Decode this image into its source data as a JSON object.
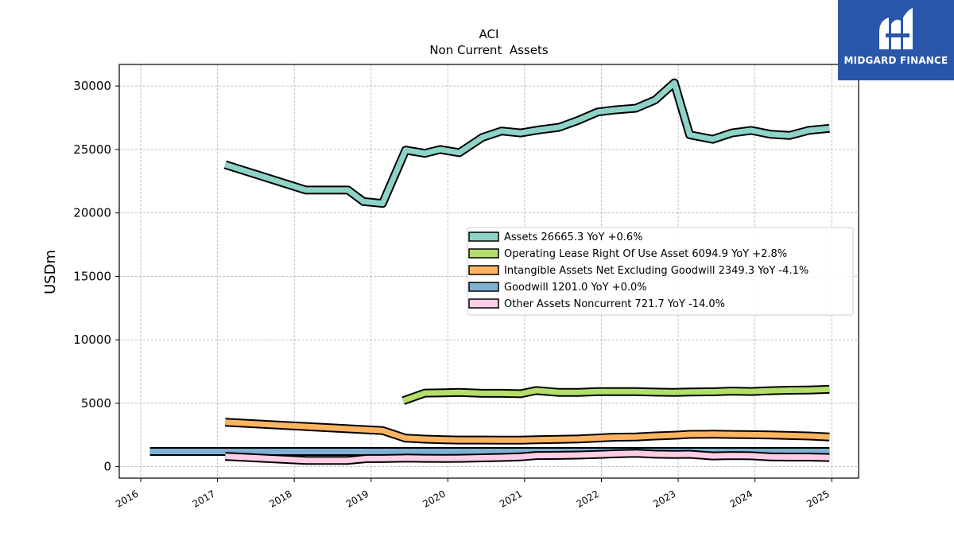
{
  "chart_data": {
    "type": "area",
    "title": "ACI",
    "subtitle": "Non Current  Assets",
    "ylabel": "USDm",
    "xlabel": "",
    "ylim": [
      -900,
      31700
    ],
    "xlim": [
      2015.72,
      2025.35
    ],
    "yticks": [
      0,
      5000,
      10000,
      15000,
      20000,
      25000,
      30000
    ],
    "xticks": [
      "2016",
      "2017",
      "2018",
      "2019",
      "2020",
      "2021",
      "2022",
      "2023",
      "2024",
      "2025"
    ],
    "grid": true,
    "legend_position": "center-right",
    "series": [
      {
        "name": "Assets",
        "legend": "Assets  26665.3 YoY +0.6%",
        "color": "#8dd3c7",
        "x": [
          2017.1,
          2018.15,
          2018.7,
          2018.9,
          2019.15,
          2019.45,
          2019.7,
          2019.9,
          2020.15,
          2020.45,
          2020.7,
          2020.95,
          2021.2,
          2021.45,
          2021.7,
          2021.95,
          2022.15,
          2022.45,
          2022.7,
          2022.95,
          2023.15,
          2023.45,
          2023.7,
          2023.95,
          2024.2,
          2024.45,
          2024.7,
          2024.97
        ],
        "values": [
          23800,
          21800,
          21800,
          20900,
          20750,
          24950,
          24700,
          25000,
          24750,
          25950,
          26450,
          26300,
          26550,
          26750,
          27300,
          27950,
          28100,
          28250,
          28900,
          30250,
          26150,
          25800,
          26300,
          26500,
          26200,
          26100,
          26500,
          26665.3
        ]
      },
      {
        "name": "Operating Lease Right Of Use Asset",
        "legend": "Operating Lease Right Of Use Asset  6094.9 YoY +2.8%",
        "color": "#b3de69",
        "x": [
          2019.42,
          2019.7,
          2019.95,
          2020.15,
          2020.45,
          2020.7,
          2020.95,
          2021.15,
          2021.45,
          2021.7,
          2021.95,
          2022.15,
          2022.45,
          2022.7,
          2022.95,
          2023.15,
          2023.45,
          2023.7,
          2023.95,
          2024.2,
          2024.45,
          2024.7,
          2024.97
        ],
        "values": [
          5200,
          5800,
          5820,
          5850,
          5780,
          5780,
          5750,
          6000,
          5850,
          5860,
          5920,
          5920,
          5920,
          5880,
          5860,
          5890,
          5900,
          5960,
          5930,
          5990,
          6030,
          6040,
          6094.9
        ]
      },
      {
        "name": "Intangible Assets Net Excluding Goodwill",
        "legend": "Intangible Assets Net Excluding Goodwill  2349.3 YoY -4.1%",
        "color": "#fdb462",
        "x": [
          2017.1,
          2019.15,
          2019.45,
          2019.7,
          2019.95,
          2020.15,
          2020.45,
          2020.7,
          2020.95,
          2021.15,
          2021.45,
          2021.7,
          2021.95,
          2022.15,
          2022.45,
          2022.7,
          2022.95,
          2023.15,
          2023.45,
          2023.7,
          2023.95,
          2024.2,
          2024.45,
          2024.7,
          2024.97
        ],
        "values": [
          3500,
          2850,
          2250,
          2170,
          2120,
          2100,
          2100,
          2090,
          2090,
          2130,
          2160,
          2190,
          2260,
          2320,
          2350,
          2420,
          2480,
          2550,
          2560,
          2540,
          2520,
          2500,
          2460,
          2420,
          2349.3
        ]
      },
      {
        "name": "Goodwill",
        "legend": "Goodwill  1201.0 YoY +0.0%",
        "color": "#80b1d3",
        "x": [
          2016.12,
          2024.97
        ],
        "values": [
          1201.0,
          1201.0
        ]
      },
      {
        "name": "Other Assets Noncurrent",
        "legend": "Other Assets Noncurrent  721.7 YoY -14.0%",
        "color": "#fccde5",
        "x": [
          2017.1,
          2018.15,
          2018.7,
          2018.95,
          2019.15,
          2019.45,
          2019.7,
          2019.95,
          2020.15,
          2020.45,
          2020.7,
          2020.95,
          2021.15,
          2021.45,
          2021.7,
          2021.95,
          2022.15,
          2022.45,
          2022.7,
          2022.95,
          2023.15,
          2023.45,
          2023.7,
          2023.95,
          2024.2,
          2024.45,
          2024.7,
          2024.97
        ],
        "values": [
          820,
          500,
          500,
          640,
          640,
          680,
          660,
          650,
          660,
          700,
          730,
          780,
          880,
          890,
          920,
          960,
          1010,
          1060,
          990,
          960,
          980,
          850,
          880,
          860,
          780,
          760,
          760,
          721.7
        ]
      }
    ]
  },
  "logo": {
    "text": "MIDGARD FINANCE",
    "background": "#2a56aa",
    "icon": "midgard-logo-icon"
  }
}
